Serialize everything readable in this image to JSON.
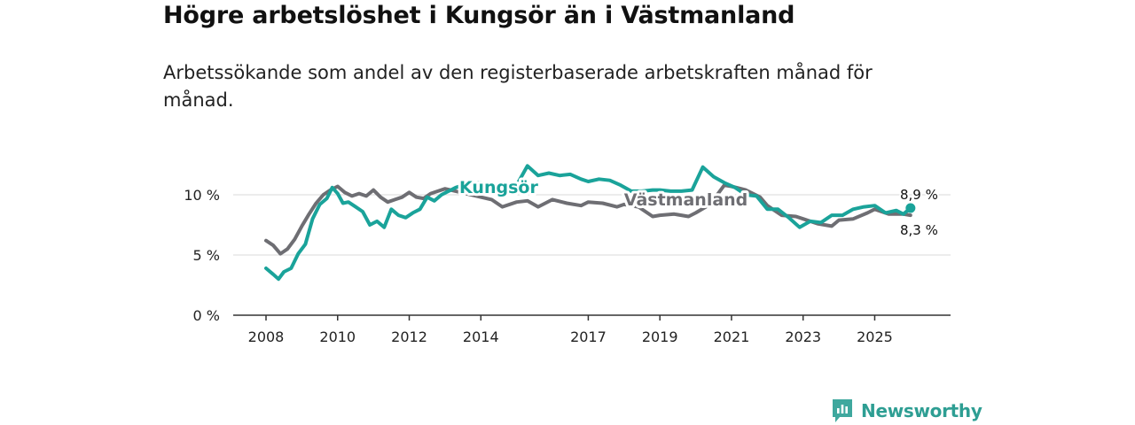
{
  "chart_data": {
    "type": "line",
    "title": "Högre arbetslöshet i Kungsör än i Västmanland",
    "subtitle": "Arbetssökande som andel av den registerbaserade arbetskraften månad för månad.",
    "xlabel": "",
    "ylabel": "",
    "xlim": [
      2008,
      2026.4
    ],
    "ylim": [
      0,
      12.5
    ],
    "yticks": [
      0,
      5,
      10
    ],
    "ytick_labels": [
      "0 %",
      "5 %",
      "10 %"
    ],
    "xticks": [
      2008,
      2010,
      2012,
      2014,
      2017,
      2019,
      2021,
      2023,
      2025
    ],
    "xtick_labels": [
      "2008",
      "2010",
      "2012",
      "2014",
      "2017",
      "2019",
      "2021",
      "2023",
      "2025"
    ],
    "grid": true,
    "series": [
      {
        "name": "Västmanland",
        "color": "#6e6e73",
        "label": "Västmanland",
        "end_label": "8,3 %",
        "x": [
          2008.0,
          2008.2,
          2008.4,
          2008.6,
          2008.8,
          2009.0,
          2009.2,
          2009.4,
          2009.6,
          2009.8,
          2010.0,
          2010.2,
          2010.4,
          2010.6,
          2010.8,
          2011.0,
          2011.2,
          2011.4,
          2011.6,
          2011.8,
          2012.0,
          2012.2,
          2012.4,
          2012.6,
          2012.8,
          2013.0,
          2014.3,
          2014.6,
          2015.0,
          2015.3,
          2015.6,
          2016.0,
          2016.4,
          2016.8,
          2017.0,
          2017.4,
          2017.8,
          2018.0,
          2018.4,
          2018.8,
          2019.0,
          2019.4,
          2019.8,
          2020.0,
          2020.4,
          2020.8,
          2021.0,
          2021.4,
          2021.8,
          2022.0,
          2022.4,
          2022.8,
          2023.0,
          2023.4,
          2023.8,
          2024.0,
          2024.4,
          2024.8,
          2025.0,
          2025.4,
          2025.8,
          2026.0
        ],
        "values": [
          6.2,
          5.8,
          5.1,
          5.5,
          6.3,
          7.4,
          8.4,
          9.3,
          10.0,
          10.4,
          10.7,
          10.2,
          9.9,
          10.1,
          9.9,
          10.4,
          9.8,
          9.4,
          9.6,
          9.8,
          10.2,
          9.8,
          9.7,
          10.1,
          10.3,
          10.5,
          9.6,
          9.0,
          9.4,
          9.5,
          9.0,
          9.6,
          9.3,
          9.1,
          9.4,
          9.3,
          9.0,
          9.2,
          9.0,
          8.2,
          8.3,
          8.4,
          8.2,
          8.5,
          9.2,
          10.8,
          10.7,
          10.4,
          9.8,
          9.1,
          8.3,
          8.2,
          8.0,
          7.6,
          7.4,
          7.9,
          8.0,
          8.5,
          8.8,
          8.4,
          8.4,
          8.3
        ]
      },
      {
        "name": "Kungsör",
        "color": "#1aa39a",
        "label": "Kungsör",
        "end_label": "8,9 %",
        "x": [
          2008.0,
          2008.2,
          2008.35,
          2008.5,
          2008.7,
          2008.9,
          2009.1,
          2009.3,
          2009.5,
          2009.7,
          2009.85,
          2010.0,
          2010.15,
          2010.3,
          2010.5,
          2010.7,
          2010.9,
          2011.1,
          2011.3,
          2011.5,
          2011.7,
          2011.9,
          2012.1,
          2012.3,
          2012.5,
          2012.7,
          2012.9,
          2013.1,
          2013.3,
          2013.5,
          2014.0,
          2014.6,
          2015.0,
          2015.3,
          2015.6,
          2015.9,
          2016.2,
          2016.5,
          2016.8,
          2017.0,
          2017.3,
          2017.6,
          2017.9,
          2018.2,
          2018.5,
          2018.8,
          2019.0,
          2019.3,
          2019.6,
          2019.9,
          2020.2,
          2020.5,
          2020.8,
          2021.1,
          2021.4,
          2021.7,
          2022.0,
          2022.3,
          2022.6,
          2022.9,
          2023.2,
          2023.5,
          2023.8,
          2024.1,
          2024.4,
          2024.7,
          2025.0,
          2025.3,
          2025.6,
          2025.8,
          2026.0
        ],
        "values": [
          3.9,
          3.4,
          3.0,
          3.6,
          3.9,
          5.1,
          5.9,
          8.0,
          9.2,
          9.7,
          10.6,
          10.1,
          9.3,
          9.4,
          9.0,
          8.6,
          7.5,
          7.8,
          7.3,
          8.8,
          8.3,
          8.1,
          8.5,
          8.8,
          9.8,
          9.5,
          10.0,
          10.3,
          10.6,
          10.8,
          11.0,
          10.6,
          10.8,
          12.4,
          11.6,
          11.8,
          11.6,
          11.7,
          11.3,
          11.1,
          11.3,
          11.2,
          10.8,
          10.3,
          10.3,
          10.4,
          10.4,
          10.3,
          10.3,
          10.4,
          12.3,
          11.5,
          11.0,
          10.6,
          10.0,
          9.9,
          8.8,
          8.8,
          8.1,
          7.3,
          7.8,
          7.7,
          8.3,
          8.3,
          8.8,
          9.0,
          9.1,
          8.5,
          8.7,
          8.4,
          8.9
        ]
      }
    ]
  },
  "brand": {
    "name": "Newsworthy"
  }
}
